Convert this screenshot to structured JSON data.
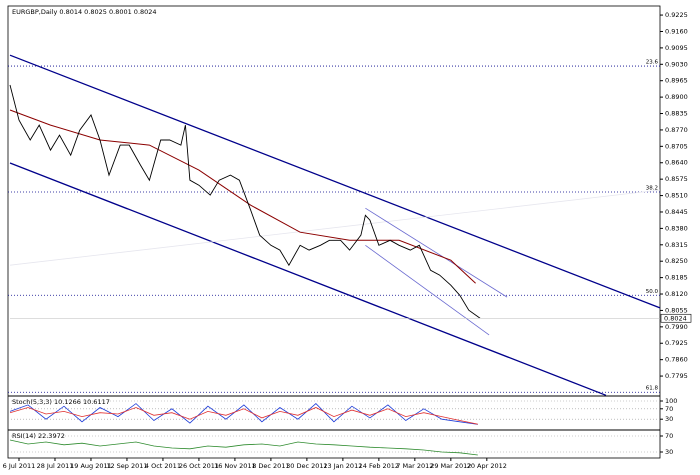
{
  "chart_data": [
    {
      "type": "line",
      "title": "EURGBP,Daily  0.8014 0.8025 0.8001 0.8024",
      "color": "#000000",
      "x": [
        0,
        4,
        9,
        13,
        18,
        22,
        27,
        31,
        36,
        40,
        44,
        49,
        53,
        58,
        62,
        67,
        71,
        76,
        78,
        80,
        84,
        89,
        93,
        98,
        102,
        107,
        111,
        116,
        120,
        124,
        129,
        133,
        138,
        142,
        147,
        151,
        156,
        158,
        160,
        164,
        169,
        173,
        178,
        182,
        187,
        191,
        196,
        200,
        204,
        209
      ],
      "values": [
        0.8948,
        0.8809,
        0.873,
        0.8789,
        0.869,
        0.8749,
        0.867,
        0.8769,
        0.8829,
        0.873,
        0.8591,
        0.871,
        0.871,
        0.8631,
        0.8571,
        0.873,
        0.873,
        0.871,
        0.8789,
        0.8571,
        0.8551,
        0.8512,
        0.8571,
        0.8591,
        0.8571,
        0.8452,
        0.8353,
        0.8313,
        0.8294,
        0.8234,
        0.8313,
        0.8294,
        0.8313,
        0.8333,
        0.8333,
        0.8294,
        0.8353,
        0.8432,
        0.8413,
        0.8313,
        0.8333,
        0.8313,
        0.8294,
        0.8313,
        0.8214,
        0.8195,
        0.8155,
        0.8115,
        0.8056,
        0.8024
      ],
      "ma": {
        "color": "#8b0000",
        "x": [
          0,
          18,
          40,
          62,
          84,
          107,
          129,
          151,
          173,
          196,
          207
        ],
        "values": [
          0.8849,
          0.8789,
          0.873,
          0.871,
          0.8611,
          0.8472,
          0.8365,
          0.8333,
          0.8333,
          0.8254,
          0.8163
        ]
      },
      "last_price": 0.8024,
      "trendlines": [
        {
          "color": "#00008b",
          "x": [
            0,
            289
          ],
          "y": [
            0.9066,
            0.8065
          ]
        },
        {
          "color": "#00008b",
          "x": [
            0,
            265
          ],
          "y": [
            0.8639,
            0.7719
          ]
        },
        {
          "color": "#e6e6ee",
          "x": [
            0,
            289
          ],
          "y": [
            0.8234,
            0.8532
          ]
        },
        {
          "color": "#6a6ad0",
          "x": [
            158,
            221
          ],
          "y": [
            0.846,
            0.8108
          ]
        },
        {
          "color": "#6a6ad0",
          "x": [
            158,
            213
          ],
          "y": [
            0.8313,
            0.7958
          ]
        }
      ],
      "levels": [
        {
          "value": 0.9023,
          "label": "23.6"
        },
        {
          "value": 0.8524,
          "label": "38.2"
        },
        {
          "value": 0.8115,
          "label": "50.0"
        },
        {
          "value": 0.7731,
          "label": "61.8"
        }
      ],
      "xlim": [
        0,
        289
      ],
      "ylim": [
        0.772,
        0.9253
      ],
      "yticks": [
        0.9225,
        {
          "value": 0.916,
          "label": "0.9160"
        },
        0.9095,
        {
          "value": 0.903,
          "label": "0.9030"
        },
        0.8965,
        {
          "value": 0.89,
          "label": "0.8900"
        },
        0.8835,
        {
          "value": 0.877,
          "label": "0.8770"
        },
        0.8705,
        {
          "value": 0.864,
          "label": "0.8640"
        },
        0.8575,
        {
          "value": 0.851,
          "label": "0.8510"
        },
        0.8445,
        {
          "value": 0.838,
          "label": "0.8380"
        },
        0.8315,
        {
          "value": 0.825,
          "label": "0.8250"
        },
        0.8185,
        {
          "value": 0.812,
          "label": "0.8120"
        },
        0.8055,
        {
          "value": 0.799,
          "label": "0.7990"
        },
        0.7925,
        {
          "value": 0.786,
          "label": "0.7860"
        },
        0.7795
      ],
      "xticks": [
        {
          "value": 4,
          "label": "6 Jul 2011"
        },
        {
          "value": 20,
          "label": "28 Jul 2011"
        },
        {
          "value": 36,
          "label": "19 Aug 2011"
        },
        {
          "value": 52,
          "label": "12 Sep 2011"
        },
        {
          "value": 68,
          "label": "4 Oct 2011"
        },
        {
          "value": 84,
          "label": "26 Oct 2011"
        },
        {
          "value": 100,
          "label": "16 Nov 2011"
        },
        {
          "value": 116,
          "label": "8 Dec 2011"
        },
        {
          "value": 132,
          "label": "30 Dec 2011"
        },
        {
          "value": 148,
          "label": "23 Jan 2012"
        },
        {
          "value": 164,
          "label": "14 Feb 2012"
        },
        {
          "value": 180,
          "label": "7 Mar 2012"
        },
        {
          "value": 196,
          "label": "29 Mar 2012"
        },
        {
          "value": 212,
          "label": "20 Apr 2012"
        }
      ]
    },
    {
      "type": "line",
      "title": "Stoch(5,3,3) 10.1266 10.6117",
      "x": [
        0,
        8,
        16,
        24,
        32,
        40,
        48,
        56,
        64,
        72,
        80,
        88,
        96,
        104,
        112,
        120,
        128,
        136,
        144,
        152,
        160,
        168,
        176,
        184,
        192,
        200,
        208
      ],
      "series": [
        {
          "color": "#1e3cd8",
          "values": [
            60,
            85,
            30,
            80,
            20,
            75,
            40,
            90,
            25,
            70,
            15,
            80,
            30,
            85,
            20,
            75,
            30,
            90,
            20,
            80,
            35,
            85,
            25,
            70,
            30,
            20,
            10.1266
          ]
        },
        {
          "color": "#e03030",
          "values": [
            55,
            75,
            50,
            60,
            40,
            55,
            50,
            75,
            45,
            55,
            30,
            60,
            45,
            70,
            35,
            60,
            45,
            75,
            40,
            65,
            45,
            70,
            40,
            55,
            40,
            25,
            10.6117
          ]
        }
      ],
      "xlim": [
        0,
        289
      ],
      "ylim": [
        -11.5,
        111.5
      ],
      "yticks": [
        100,
        70,
        30
      ]
    },
    {
      "type": "line",
      "title": "RSI(14) 22.3972",
      "x": [
        0,
        8,
        16,
        24,
        32,
        40,
        48,
        56,
        64,
        72,
        80,
        88,
        96,
        104,
        112,
        120,
        128,
        136,
        144,
        152,
        160,
        168,
        176,
        184,
        192,
        200,
        208
      ],
      "series": [
        {
          "color": "#2e8b2e",
          "values": [
            60,
            50,
            55,
            48,
            52,
            45,
            50,
            55,
            45,
            40,
            38,
            45,
            42,
            48,
            50,
            45,
            55,
            50,
            48,
            45,
            42,
            40,
            38,
            35,
            30,
            28,
            22.3972
          ]
        }
      ],
      "xlim": [
        0,
        289
      ],
      "ylim": [
        17.5,
        82.5
      ],
      "yticks": [
        70,
        30
      ]
    }
  ]
}
